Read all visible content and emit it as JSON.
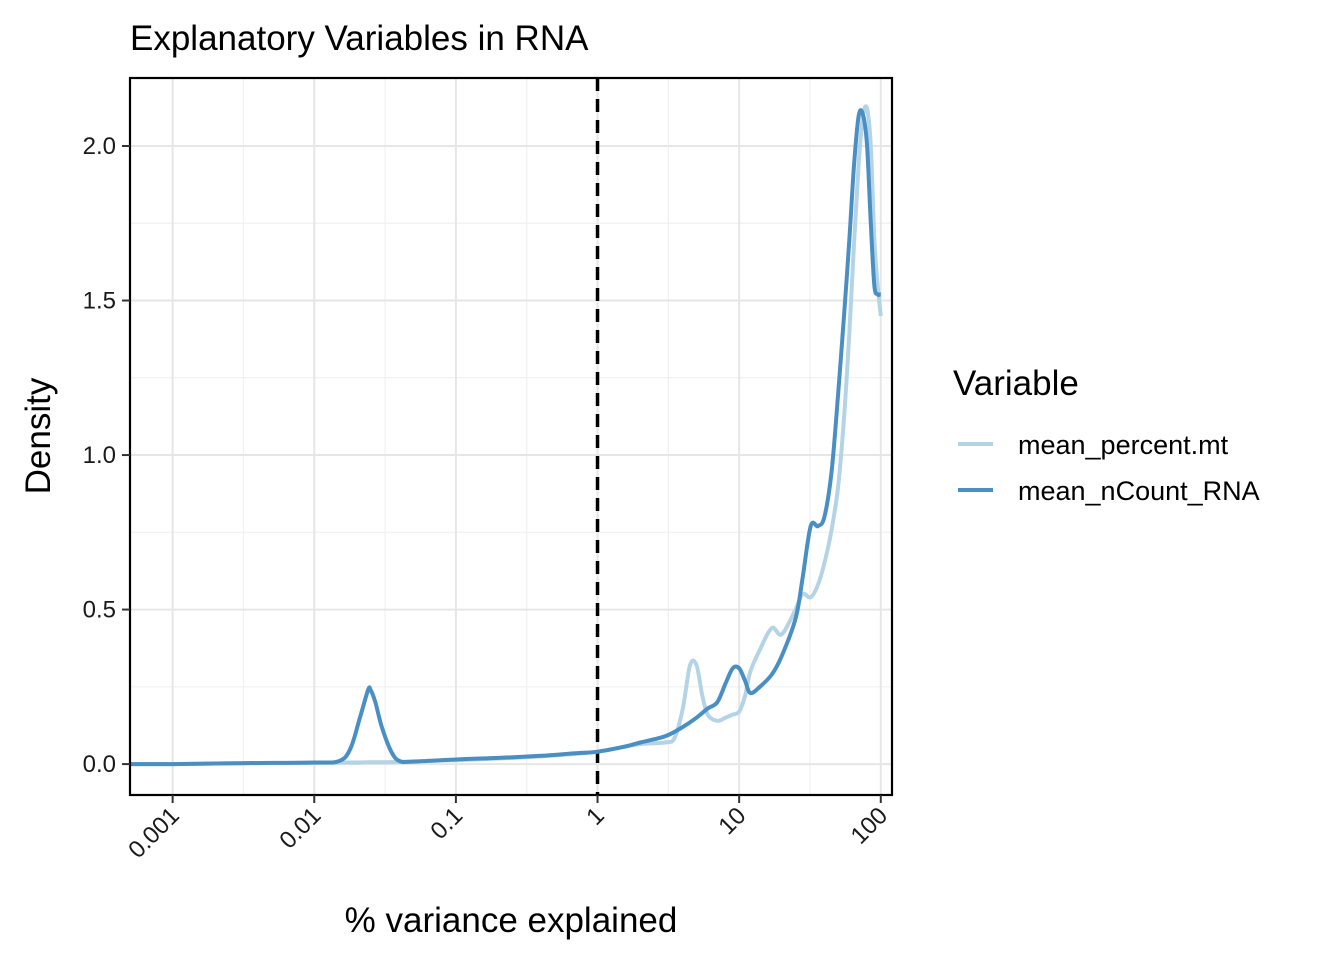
{
  "chart_data": {
    "type": "line",
    "title": "Explanatory Variables in RNA",
    "xlabel": "% variance explained",
    "ylabel": "Density",
    "x_scale": "log10",
    "xlim": [
      0.0005,
      120
    ],
    "ylim": [
      -0.1,
      2.22
    ],
    "x_ticks": [
      0.001,
      0.01,
      0.1,
      1,
      10,
      100
    ],
    "x_tick_labels": [
      "0.001",
      "0.01",
      "0.1",
      "1",
      "10",
      "100"
    ],
    "y_ticks": [
      0.0,
      0.5,
      1.0,
      1.5,
      2.0
    ],
    "y_tick_labels": [
      "0.0",
      "0.5",
      "1.0",
      "1.5",
      "2.0"
    ],
    "grid": true,
    "reference_line": {
      "x": 1,
      "style": "dashed",
      "color": "#000000"
    },
    "legend": {
      "title": "Variable",
      "position": "right"
    },
    "series": [
      {
        "name": "mean_percent.mt",
        "color": "#b4d4e6",
        "x": [
          0.0005,
          0.001,
          0.003,
          0.01,
          0.015,
          0.02,
          0.025,
          0.03,
          0.04,
          0.06,
          0.1,
          0.2,
          0.4,
          0.7,
          1.0,
          1.5,
          2.0,
          3.0,
          3.5,
          4.0,
          4.5,
          5.0,
          5.5,
          6.0,
          7.0,
          8.0,
          9.0,
          10.0,
          11.0,
          12.0,
          14.0,
          17.0,
          20.0,
          25.0,
          28.0,
          32.0,
          36.0,
          40.0,
          45.0,
          50.0,
          55.0,
          60.0,
          65.0,
          70.0,
          75.0,
          80.0,
          85.0,
          90.0,
          95.0,
          100.0
        ],
        "y": [
          0.0,
          0.0,
          0.003,
          0.004,
          0.005,
          0.005,
          0.006,
          0.006,
          0.007,
          0.01,
          0.013,
          0.018,
          0.025,
          0.033,
          0.04,
          0.055,
          0.065,
          0.07,
          0.085,
          0.18,
          0.32,
          0.32,
          0.22,
          0.16,
          0.14,
          0.15,
          0.16,
          0.17,
          0.22,
          0.3,
          0.37,
          0.44,
          0.42,
          0.5,
          0.55,
          0.54,
          0.58,
          0.65,
          0.76,
          0.9,
          1.12,
          1.4,
          1.7,
          1.95,
          2.1,
          2.12,
          2.0,
          1.7,
          1.55,
          1.45
        ]
      },
      {
        "name": "mean_nCount_RNA",
        "color": "#4a8fc4",
        "x": [
          0.0005,
          0.001,
          0.003,
          0.01,
          0.015,
          0.018,
          0.021,
          0.024,
          0.025,
          0.027,
          0.03,
          0.035,
          0.04,
          0.05,
          0.1,
          0.2,
          0.4,
          0.7,
          1.0,
          1.5,
          2.0,
          3.0,
          4.0,
          5.0,
          6.0,
          7.0,
          8.0,
          9.0,
          10.0,
          11.0,
          12.0,
          14.0,
          17.0,
          20.0,
          25.0,
          28.0,
          32.0,
          36.0,
          40.0,
          45.0,
          50.0,
          55.0,
          60.0,
          65.0,
          70.0,
          75.0,
          80.0,
          85.0,
          90.0,
          95.0,
          100.0
        ],
        "y": [
          0.0,
          0.0,
          0.003,
          0.005,
          0.01,
          0.05,
          0.15,
          0.24,
          0.24,
          0.2,
          0.12,
          0.04,
          0.01,
          0.008,
          0.015,
          0.02,
          0.027,
          0.035,
          0.04,
          0.055,
          0.07,
          0.09,
          0.12,
          0.15,
          0.18,
          0.2,
          0.26,
          0.31,
          0.31,
          0.27,
          0.23,
          0.25,
          0.29,
          0.35,
          0.47,
          0.6,
          0.77,
          0.77,
          0.8,
          0.95,
          1.2,
          1.45,
          1.7,
          1.95,
          2.1,
          2.1,
          2.0,
          1.75,
          1.55,
          1.52,
          1.52
        ]
      }
    ]
  }
}
